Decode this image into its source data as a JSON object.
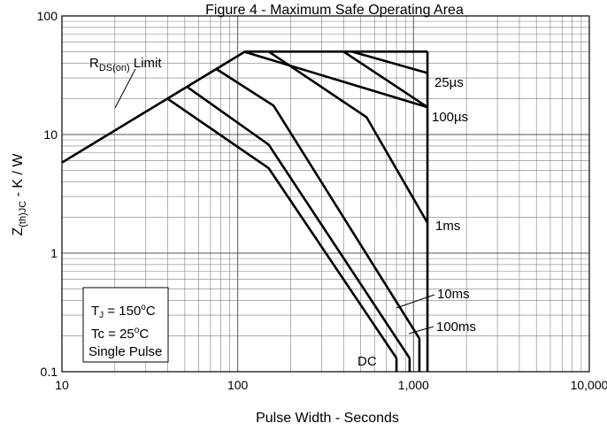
{
  "chart_data": {
    "type": "line",
    "title": "Figure 4 - Maximum Safe Operating Area",
    "xlabel": "Pulse Width - Seconds",
    "ylabel": "Z(th)JC - K / W",
    "x_scale": "log",
    "y_scale": "log",
    "xlim": [
      10,
      10000
    ],
    "ylim": [
      0.1,
      100
    ],
    "grid": true,
    "x_ticks": [
      {
        "value": 10,
        "label": "10"
      },
      {
        "value": 100,
        "label": "100"
      },
      {
        "value": 1000,
        "label": "1,000"
      },
      {
        "value": 10000,
        "label": "10,000"
      }
    ],
    "y_ticks": [
      {
        "value": 0.1,
        "label": "0.1"
      },
      {
        "value": 1,
        "label": "1"
      },
      {
        "value": 10,
        "label": "10"
      },
      {
        "value": 100,
        "label": "100"
      }
    ],
    "series": [
      {
        "name": "25µs",
        "points": [
          [
            445,
            50
          ],
          [
            1200,
            33
          ]
        ]
      },
      {
        "name": "100µs",
        "points": [
          [
            108,
            50
          ],
          [
            1200,
            17
          ]
        ]
      },
      {
        "name": "1ms",
        "points": [
          [
            150,
            50
          ],
          [
            540,
            14
          ],
          [
            1200,
            1.8
          ]
        ]
      },
      {
        "name": "10ms",
        "points": [
          [
            75,
            36
          ],
          [
            160,
            17.5
          ],
          [
            1080,
            0.19
          ]
        ]
      },
      {
        "name": "100ms",
        "points": [
          [
            52,
            25
          ],
          [
            150,
            8.2
          ],
          [
            950,
            0.13
          ]
        ]
      },
      {
        "name": "DC",
        "points": [
          [
            40,
            20
          ],
          [
            150,
            5.2
          ],
          [
            800,
            0.13
          ]
        ]
      }
    ],
    "boundaries": [
      {
        "name": "RDS(on) Limit",
        "points": [
          [
            10,
            5.8
          ],
          [
            110,
            50
          ]
        ]
      },
      {
        "name": "",
        "points": [
          [
            110,
            50
          ],
          [
            1200,
            50
          ]
        ]
      },
      {
        "name": "",
        "points": [
          [
            1200,
            50
          ],
          [
            1200,
            0.1
          ]
        ]
      },
      {
        "name": "",
        "points": [
          [
            400,
            50
          ],
          [
            1200,
            17
          ]
        ]
      }
    ],
    "drop_lines_x": [
      800,
      950,
      1080
    ],
    "annotations": {
      "rds_prefix": "R",
      "rds_sub": "DS(on)",
      "rds_suffix": " Limit",
      "tj_prefix": "T",
      "tj_sub": "J",
      "tj_value": " = 150",
      "tj_sup": "o",
      "tj_unit": "C",
      "tc_text": "Tc = 25",
      "tc_sup": "o",
      "tc_unit": "C",
      "single_pulse": "Single Pulse"
    },
    "colors": {
      "line": "#000000",
      "grid": "#7f7f7f",
      "background": "#ffffff"
    }
  }
}
